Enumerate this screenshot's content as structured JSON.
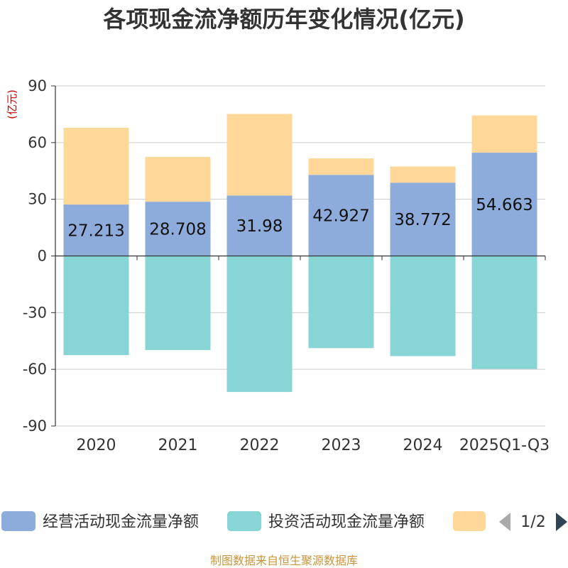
{
  "chart_data": {
    "type": "bar",
    "stacked": true,
    "title": "各项现金流净额历年变化情况(亿元)",
    "unit_label": "(亿元)",
    "categories": [
      "2020",
      "2021",
      "2022",
      "2023",
      "2024",
      "2025Q1-Q3"
    ],
    "ylim": [
      -90,
      90
    ],
    "yticks": [
      90,
      60,
      30,
      0,
      -30,
      -60,
      -90
    ],
    "grid": true,
    "series": [
      {
        "name": "经营活动现金流量净额",
        "color": "#8eacdb",
        "values": [
          27.213,
          28.708,
          31.98,
          42.927,
          38.772,
          54.663
        ],
        "labels": [
          "27.213",
          "28.708",
          "31.98",
          "42.927",
          "38.772",
          "54.663"
        ]
      },
      {
        "name": "投资活动现金流量净额",
        "color": "#88d5d6",
        "values": [
          -52.5,
          -49.8,
          -72.0,
          -48.8,
          -53.0,
          -59.8
        ]
      },
      {
        "name": "",
        "color": "#ffd899",
        "values": [
          40.6,
          23.7,
          43.2,
          8.7,
          8.6,
          19.7
        ]
      }
    ],
    "legend_position": "bottom",
    "legend_page": "1/2"
  },
  "footer": {
    "source": "制图数据来自恒生聚源数据库"
  },
  "colors": {
    "axis": "#333333",
    "grid": "#cccccc",
    "nav_active": "#2f4554",
    "nav_inactive": "#aaaaaa"
  }
}
